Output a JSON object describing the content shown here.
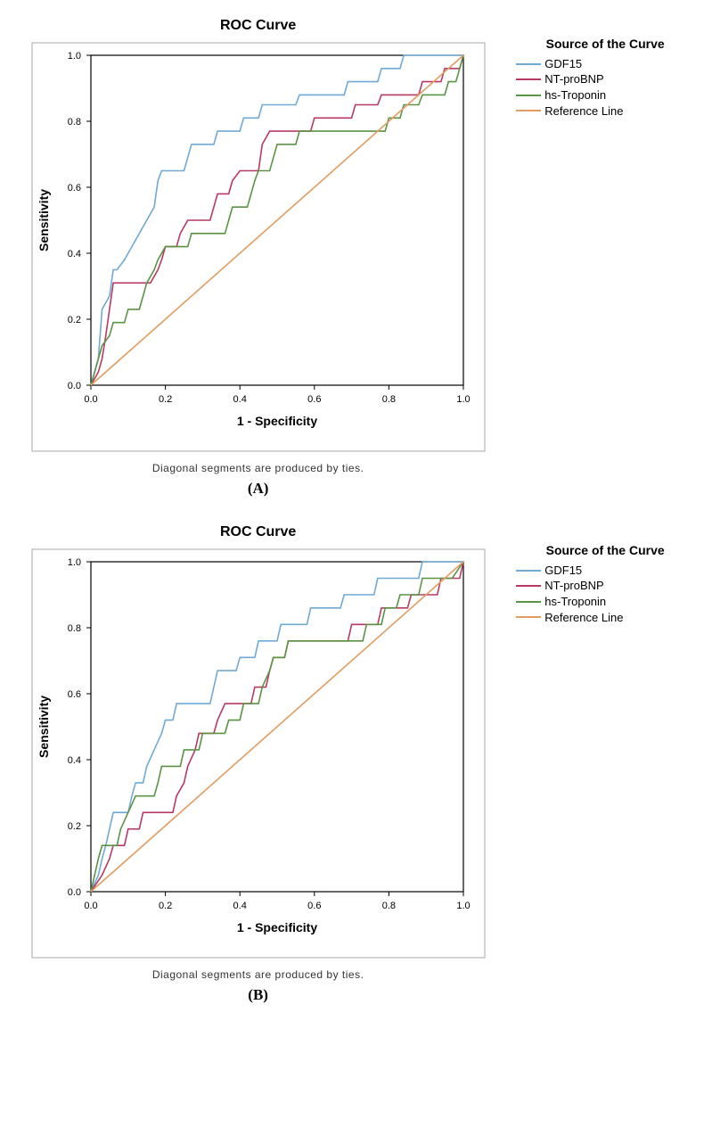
{
  "global": {
    "title": "ROC Curve",
    "xlabel": "1 - Specificity",
    "ylabel": "Sensitivity",
    "footnote": "Diagonal segments are produced by ties.",
    "legend_title": "Source of the Curve",
    "xlim": [
      0,
      1
    ],
    "ylim": [
      0,
      1
    ],
    "xtick_step": 0.2,
    "ytick_step": 0.2,
    "axis_fontsize": 11,
    "label_fontsize": 14,
    "title_fontsize": 16,
    "footnote_fontsize": 12,
    "legend_fontsize": 13,
    "background_color": "#ffffff",
    "plot_border_color": "#000000",
    "frame_border_color": "#a7a7a7",
    "line_width": 1.6
  },
  "series_meta": [
    {
      "key": "gdf15",
      "label": "GDF15",
      "color": "#6fa9d6"
    },
    {
      "key": "ntprobnp",
      "label": "NT-proBNP",
      "color": "#b73a63"
    },
    {
      "key": "hstrop",
      "label": "hs-Troponin",
      "color": "#5a9443"
    },
    {
      "key": "ref",
      "label": "Reference Line",
      "color": "#e39b5f"
    }
  ],
  "panels": [
    {
      "label": "(A)",
      "series": {
        "gdf15": [
          [
            0.0,
            0.0
          ],
          [
            0.02,
            0.08
          ],
          [
            0.03,
            0.23
          ],
          [
            0.05,
            0.27
          ],
          [
            0.06,
            0.35
          ],
          [
            0.07,
            0.35
          ],
          [
            0.09,
            0.38
          ],
          [
            0.11,
            0.42
          ],
          [
            0.13,
            0.46
          ],
          [
            0.15,
            0.5
          ],
          [
            0.17,
            0.54
          ],
          [
            0.18,
            0.62
          ],
          [
            0.19,
            0.65
          ],
          [
            0.25,
            0.65
          ],
          [
            0.26,
            0.69
          ],
          [
            0.27,
            0.73
          ],
          [
            0.33,
            0.73
          ],
          [
            0.34,
            0.77
          ],
          [
            0.4,
            0.77
          ],
          [
            0.41,
            0.81
          ],
          [
            0.45,
            0.81
          ],
          [
            0.46,
            0.85
          ],
          [
            0.55,
            0.85
          ],
          [
            0.56,
            0.88
          ],
          [
            0.68,
            0.88
          ],
          [
            0.69,
            0.92
          ],
          [
            0.77,
            0.92
          ],
          [
            0.78,
            0.96
          ],
          [
            0.83,
            0.96
          ],
          [
            0.84,
            1.0
          ],
          [
            1.0,
            1.0
          ]
        ],
        "ntprobnp": [
          [
            0.0,
            0.0
          ],
          [
            0.02,
            0.04
          ],
          [
            0.03,
            0.08
          ],
          [
            0.04,
            0.15
          ],
          [
            0.05,
            0.23
          ],
          [
            0.06,
            0.31
          ],
          [
            0.12,
            0.31
          ],
          [
            0.16,
            0.31
          ],
          [
            0.18,
            0.35
          ],
          [
            0.19,
            0.38
          ],
          [
            0.2,
            0.42
          ],
          [
            0.23,
            0.42
          ],
          [
            0.24,
            0.46
          ],
          [
            0.26,
            0.5
          ],
          [
            0.32,
            0.5
          ],
          [
            0.33,
            0.54
          ],
          [
            0.34,
            0.58
          ],
          [
            0.37,
            0.58
          ],
          [
            0.38,
            0.62
          ],
          [
            0.4,
            0.65
          ],
          [
            0.45,
            0.65
          ],
          [
            0.46,
            0.73
          ],
          [
            0.48,
            0.77
          ],
          [
            0.59,
            0.77
          ],
          [
            0.6,
            0.81
          ],
          [
            0.7,
            0.81
          ],
          [
            0.71,
            0.85
          ],
          [
            0.77,
            0.85
          ],
          [
            0.78,
            0.88
          ],
          [
            0.88,
            0.88
          ],
          [
            0.89,
            0.92
          ],
          [
            0.94,
            0.92
          ],
          [
            0.95,
            0.96
          ],
          [
            0.99,
            0.96
          ],
          [
            1.0,
            1.0
          ]
        ],
        "hstrop": [
          [
            0.0,
            0.0
          ],
          [
            0.01,
            0.04
          ],
          [
            0.02,
            0.08
          ],
          [
            0.03,
            0.12
          ],
          [
            0.05,
            0.15
          ],
          [
            0.06,
            0.19
          ],
          [
            0.09,
            0.19
          ],
          [
            0.1,
            0.23
          ],
          [
            0.13,
            0.23
          ],
          [
            0.14,
            0.27
          ],
          [
            0.15,
            0.31
          ],
          [
            0.17,
            0.35
          ],
          [
            0.18,
            0.38
          ],
          [
            0.2,
            0.42
          ],
          [
            0.26,
            0.42
          ],
          [
            0.27,
            0.46
          ],
          [
            0.36,
            0.46
          ],
          [
            0.37,
            0.5
          ],
          [
            0.38,
            0.54
          ],
          [
            0.42,
            0.54
          ],
          [
            0.43,
            0.58
          ],
          [
            0.44,
            0.62
          ],
          [
            0.45,
            0.65
          ],
          [
            0.48,
            0.65
          ],
          [
            0.49,
            0.69
          ],
          [
            0.5,
            0.73
          ],
          [
            0.55,
            0.73
          ],
          [
            0.56,
            0.77
          ],
          [
            0.79,
            0.77
          ],
          [
            0.8,
            0.81
          ],
          [
            0.83,
            0.81
          ],
          [
            0.84,
            0.85
          ],
          [
            0.88,
            0.85
          ],
          [
            0.89,
            0.88
          ],
          [
            0.95,
            0.88
          ],
          [
            0.96,
            0.92
          ],
          [
            0.98,
            0.92
          ],
          [
            0.99,
            0.96
          ],
          [
            1.0,
            1.0
          ]
        ],
        "ref": [
          [
            0.0,
            0.0
          ],
          [
            1.0,
            1.0
          ]
        ]
      }
    },
    {
      "label": "(B)",
      "series": {
        "gdf15": [
          [
            0.0,
            0.0
          ],
          [
            0.02,
            0.05
          ],
          [
            0.03,
            0.1
          ],
          [
            0.04,
            0.14
          ],
          [
            0.05,
            0.19
          ],
          [
            0.06,
            0.24
          ],
          [
            0.1,
            0.24
          ],
          [
            0.11,
            0.29
          ],
          [
            0.12,
            0.33
          ],
          [
            0.14,
            0.33
          ],
          [
            0.15,
            0.38
          ],
          [
            0.17,
            0.43
          ],
          [
            0.19,
            0.48
          ],
          [
            0.2,
            0.52
          ],
          [
            0.22,
            0.52
          ],
          [
            0.23,
            0.57
          ],
          [
            0.32,
            0.57
          ],
          [
            0.33,
            0.62
          ],
          [
            0.34,
            0.67
          ],
          [
            0.39,
            0.67
          ],
          [
            0.4,
            0.71
          ],
          [
            0.44,
            0.71
          ],
          [
            0.45,
            0.76
          ],
          [
            0.5,
            0.76
          ],
          [
            0.51,
            0.81
          ],
          [
            0.58,
            0.81
          ],
          [
            0.59,
            0.86
          ],
          [
            0.67,
            0.86
          ],
          [
            0.68,
            0.9
          ],
          [
            0.76,
            0.9
          ],
          [
            0.77,
            0.95
          ],
          [
            0.88,
            0.95
          ],
          [
            0.89,
            1.0
          ],
          [
            1.0,
            1.0
          ]
        ],
        "ntprobnp": [
          [
            0.0,
            0.0
          ],
          [
            0.03,
            0.05
          ],
          [
            0.05,
            0.1
          ],
          [
            0.06,
            0.14
          ],
          [
            0.09,
            0.14
          ],
          [
            0.1,
            0.19
          ],
          [
            0.13,
            0.19
          ],
          [
            0.14,
            0.24
          ],
          [
            0.22,
            0.24
          ],
          [
            0.23,
            0.29
          ],
          [
            0.25,
            0.33
          ],
          [
            0.26,
            0.38
          ],
          [
            0.28,
            0.43
          ],
          [
            0.29,
            0.48
          ],
          [
            0.33,
            0.48
          ],
          [
            0.34,
            0.52
          ],
          [
            0.36,
            0.57
          ],
          [
            0.43,
            0.57
          ],
          [
            0.44,
            0.62
          ],
          [
            0.47,
            0.62
          ],
          [
            0.48,
            0.67
          ],
          [
            0.49,
            0.71
          ],
          [
            0.52,
            0.71
          ],
          [
            0.53,
            0.76
          ],
          [
            0.69,
            0.76
          ],
          [
            0.7,
            0.81
          ],
          [
            0.77,
            0.81
          ],
          [
            0.78,
            0.86
          ],
          [
            0.85,
            0.86
          ],
          [
            0.86,
            0.9
          ],
          [
            0.93,
            0.9
          ],
          [
            0.94,
            0.95
          ],
          [
            0.99,
            0.95
          ],
          [
            1.0,
            1.0
          ]
        ],
        "hstrop": [
          [
            0.0,
            0.0
          ],
          [
            0.01,
            0.05
          ],
          [
            0.02,
            0.1
          ],
          [
            0.03,
            0.14
          ],
          [
            0.07,
            0.14
          ],
          [
            0.08,
            0.19
          ],
          [
            0.1,
            0.24
          ],
          [
            0.12,
            0.29
          ],
          [
            0.17,
            0.29
          ],
          [
            0.18,
            0.33
          ],
          [
            0.19,
            0.38
          ],
          [
            0.24,
            0.38
          ],
          [
            0.25,
            0.43
          ],
          [
            0.29,
            0.43
          ],
          [
            0.3,
            0.48
          ],
          [
            0.36,
            0.48
          ],
          [
            0.37,
            0.52
          ],
          [
            0.4,
            0.52
          ],
          [
            0.41,
            0.57
          ],
          [
            0.45,
            0.57
          ],
          [
            0.46,
            0.62
          ],
          [
            0.48,
            0.67
          ],
          [
            0.49,
            0.71
          ],
          [
            0.52,
            0.71
          ],
          [
            0.53,
            0.76
          ],
          [
            0.73,
            0.76
          ],
          [
            0.74,
            0.81
          ],
          [
            0.78,
            0.81
          ],
          [
            0.79,
            0.86
          ],
          [
            0.82,
            0.86
          ],
          [
            0.83,
            0.9
          ],
          [
            0.88,
            0.9
          ],
          [
            0.89,
            0.95
          ],
          [
            0.97,
            0.95
          ],
          [
            1.0,
            1.0
          ]
        ],
        "ref": [
          [
            0.0,
            0.0
          ],
          [
            1.0,
            1.0
          ]
        ]
      }
    }
  ]
}
